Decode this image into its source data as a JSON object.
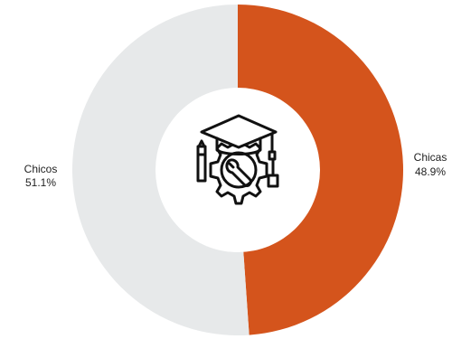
{
  "chart_data": {
    "type": "pie",
    "variant": "donut",
    "slices": [
      {
        "label": "Chicas",
        "percent_label": "48.9%",
        "value": 48.9,
        "color": "#d4541c"
      },
      {
        "label": "Chicos",
        "percent_label": "51.1%",
        "value": 51.1,
        "color": "#e7e9ea"
      }
    ],
    "start_angle_deg": 0,
    "direction": "clockwise",
    "center_icon": "graduation-cap-gear-icon",
    "legend": "none"
  }
}
